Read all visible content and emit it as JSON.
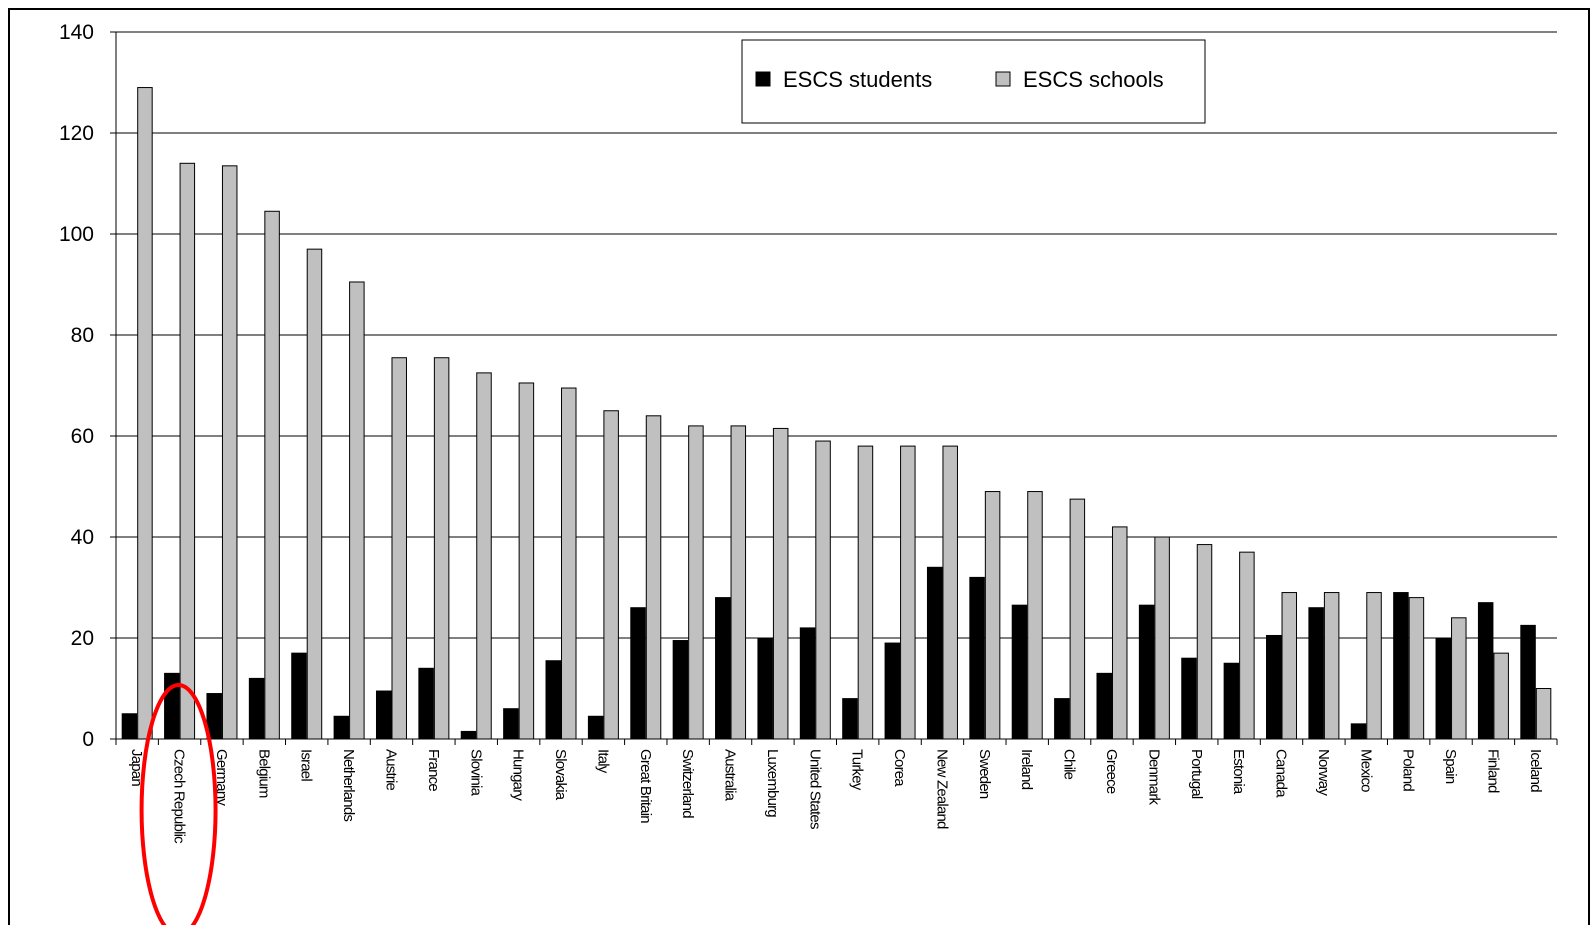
{
  "chart_data": {
    "type": "bar",
    "title": "",
    "xlabel": "",
    "ylabel": "",
    "ylim": [
      0,
      140
    ],
    "yticks": [
      0,
      20,
      40,
      60,
      80,
      100,
      120,
      140
    ],
    "grid": true,
    "legend_position": "top-right",
    "categories": [
      "Japan",
      "Czech Republic",
      "Germany",
      "Belgium",
      "Israel",
      "Netherlands",
      "Austrie",
      "France",
      "Slovinia",
      "Hungary",
      "Slovakia",
      "Italy",
      "Great Britain",
      "Switzerland",
      "Australia",
      "Luxemburg",
      "United States",
      "Turkey",
      "Corea",
      "New Zealand",
      "Sweden",
      "Ireland",
      "Chile",
      "Greece",
      "Denmark",
      "Portugal",
      "Estonia",
      "Canada",
      "Norway",
      "Mexico",
      "Poland",
      "Spain",
      "Finland",
      "Iceland"
    ],
    "series": [
      {
        "name": "ESCS students",
        "color": "#000000",
        "values": [
          5,
          13,
          9,
          12,
          17,
          4.5,
          9.5,
          14,
          1.5,
          6,
          15.5,
          4.5,
          26,
          19.5,
          28,
          20,
          22,
          8,
          19,
          34,
          32,
          26.5,
          8,
          13,
          26.5,
          16,
          15,
          20.5,
          26,
          3,
          29,
          20,
          27,
          22.5
        ]
      },
      {
        "name": "ESCS schools",
        "color": "#c0c0c0",
        "values": [
          129,
          114,
          113.5,
          104.5,
          97,
          90.5,
          75.5,
          75.5,
          72.5,
          70.5,
          69.5,
          65,
          64,
          62,
          62,
          61.5,
          59,
          58,
          58,
          58,
          49,
          49,
          47.5,
          42,
          40,
          38.5,
          37,
          29,
          29,
          29,
          28,
          24,
          17,
          10
        ]
      }
    ],
    "annotation": {
      "type": "ellipse",
      "target": "Czech Republic",
      "color": "#ff0000"
    }
  }
}
